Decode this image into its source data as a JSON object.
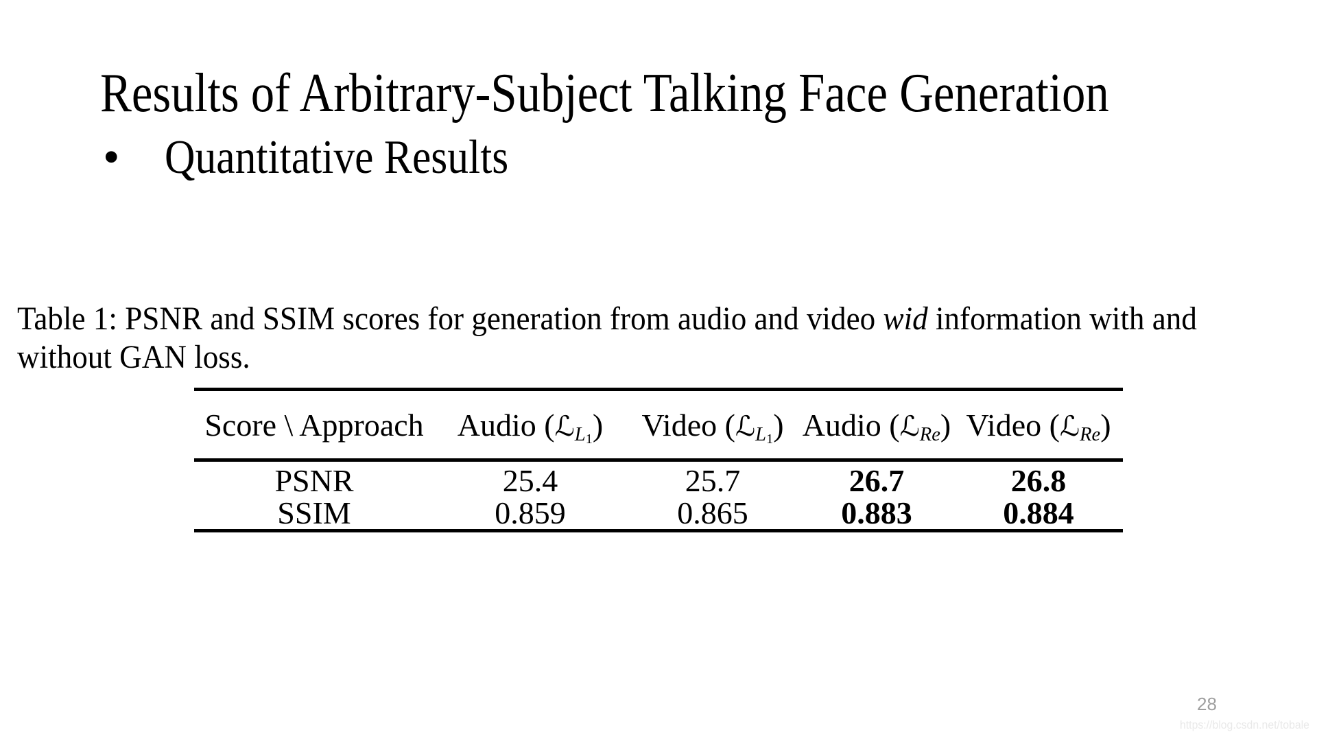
{
  "slide": {
    "title": "Results of Arbitrary-Subject Talking Face Generation",
    "bullet_marker": "•",
    "bullet_text": "Quantitative Results"
  },
  "caption": {
    "line1_prefix": "Table 1: PSNR and SSIM scores for generation from audio and video ",
    "line1_math": "wid",
    "line1_suffix": " information with and",
    "line2": "without GAN loss."
  },
  "table": {
    "header": {
      "col0": "Score \\ Approach",
      "col1": {
        "prefix": "Audio (",
        "cal": "ℒ",
        "sub": "L",
        "subsub": "1",
        "suffix": ")"
      },
      "col2": {
        "prefix": "Video (",
        "cal": "ℒ",
        "sub": "L",
        "subsub": "1",
        "suffix": ")"
      },
      "col3": {
        "prefix": "Audio (",
        "cal": "ℒ",
        "sub": "Re",
        "subsub": "",
        "suffix": ")"
      },
      "col4": {
        "prefix": "Video (",
        "cal": "ℒ",
        "sub": "Re",
        "subsub": "",
        "suffix": ")"
      }
    },
    "rows": [
      {
        "label": "PSNR",
        "values": [
          "25.4",
          "25.7",
          "26.7",
          "26.8"
        ]
      },
      {
        "label": "SSIM",
        "values": [
          "0.859",
          "0.865",
          "0.883",
          "0.884"
        ]
      }
    ]
  },
  "footer": {
    "page_number": "28",
    "watermark": "https://blog.csdn.net/tobale"
  },
  "colors": {
    "background": "#ffffff",
    "text": "#000000",
    "page_number": "#9e9e9e",
    "watermark": "#e9e9e9"
  }
}
